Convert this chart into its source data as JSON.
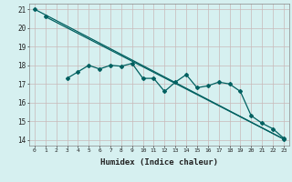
{
  "xlabel": "Humidex (Indice chaleur)",
  "bg_color": "#d6f0f0",
  "grid_color": "#c8b8b8",
  "line_color": "#006060",
  "xlim": [
    -0.5,
    23.5
  ],
  "ylim": [
    13.7,
    21.3
  ],
  "x_ticks": [
    0,
    1,
    2,
    3,
    4,
    5,
    6,
    7,
    8,
    9,
    10,
    11,
    12,
    13,
    14,
    15,
    16,
    17,
    18,
    19,
    20,
    21,
    22,
    23
  ],
  "y_ticks": [
    14,
    15,
    16,
    17,
    18,
    19,
    20,
    21
  ],
  "line1_x": [
    0,
    23
  ],
  "line1_y": [
    21.0,
    14.05
  ],
  "line2_x": [
    1,
    23
  ],
  "line2_y": [
    20.6,
    14.05
  ],
  "line3_x": [
    3,
    4,
    5,
    6,
    7,
    8,
    9,
    10,
    11,
    12,
    13,
    14,
    15,
    16,
    17,
    18,
    19,
    20,
    21,
    22,
    23
  ],
  "line3_y": [
    17.3,
    17.65,
    18.0,
    17.8,
    18.0,
    17.95,
    18.1,
    17.3,
    17.3,
    16.6,
    17.1,
    17.5,
    16.8,
    16.9,
    17.1,
    17.0,
    16.6,
    15.3,
    14.9,
    14.6,
    14.1
  ]
}
